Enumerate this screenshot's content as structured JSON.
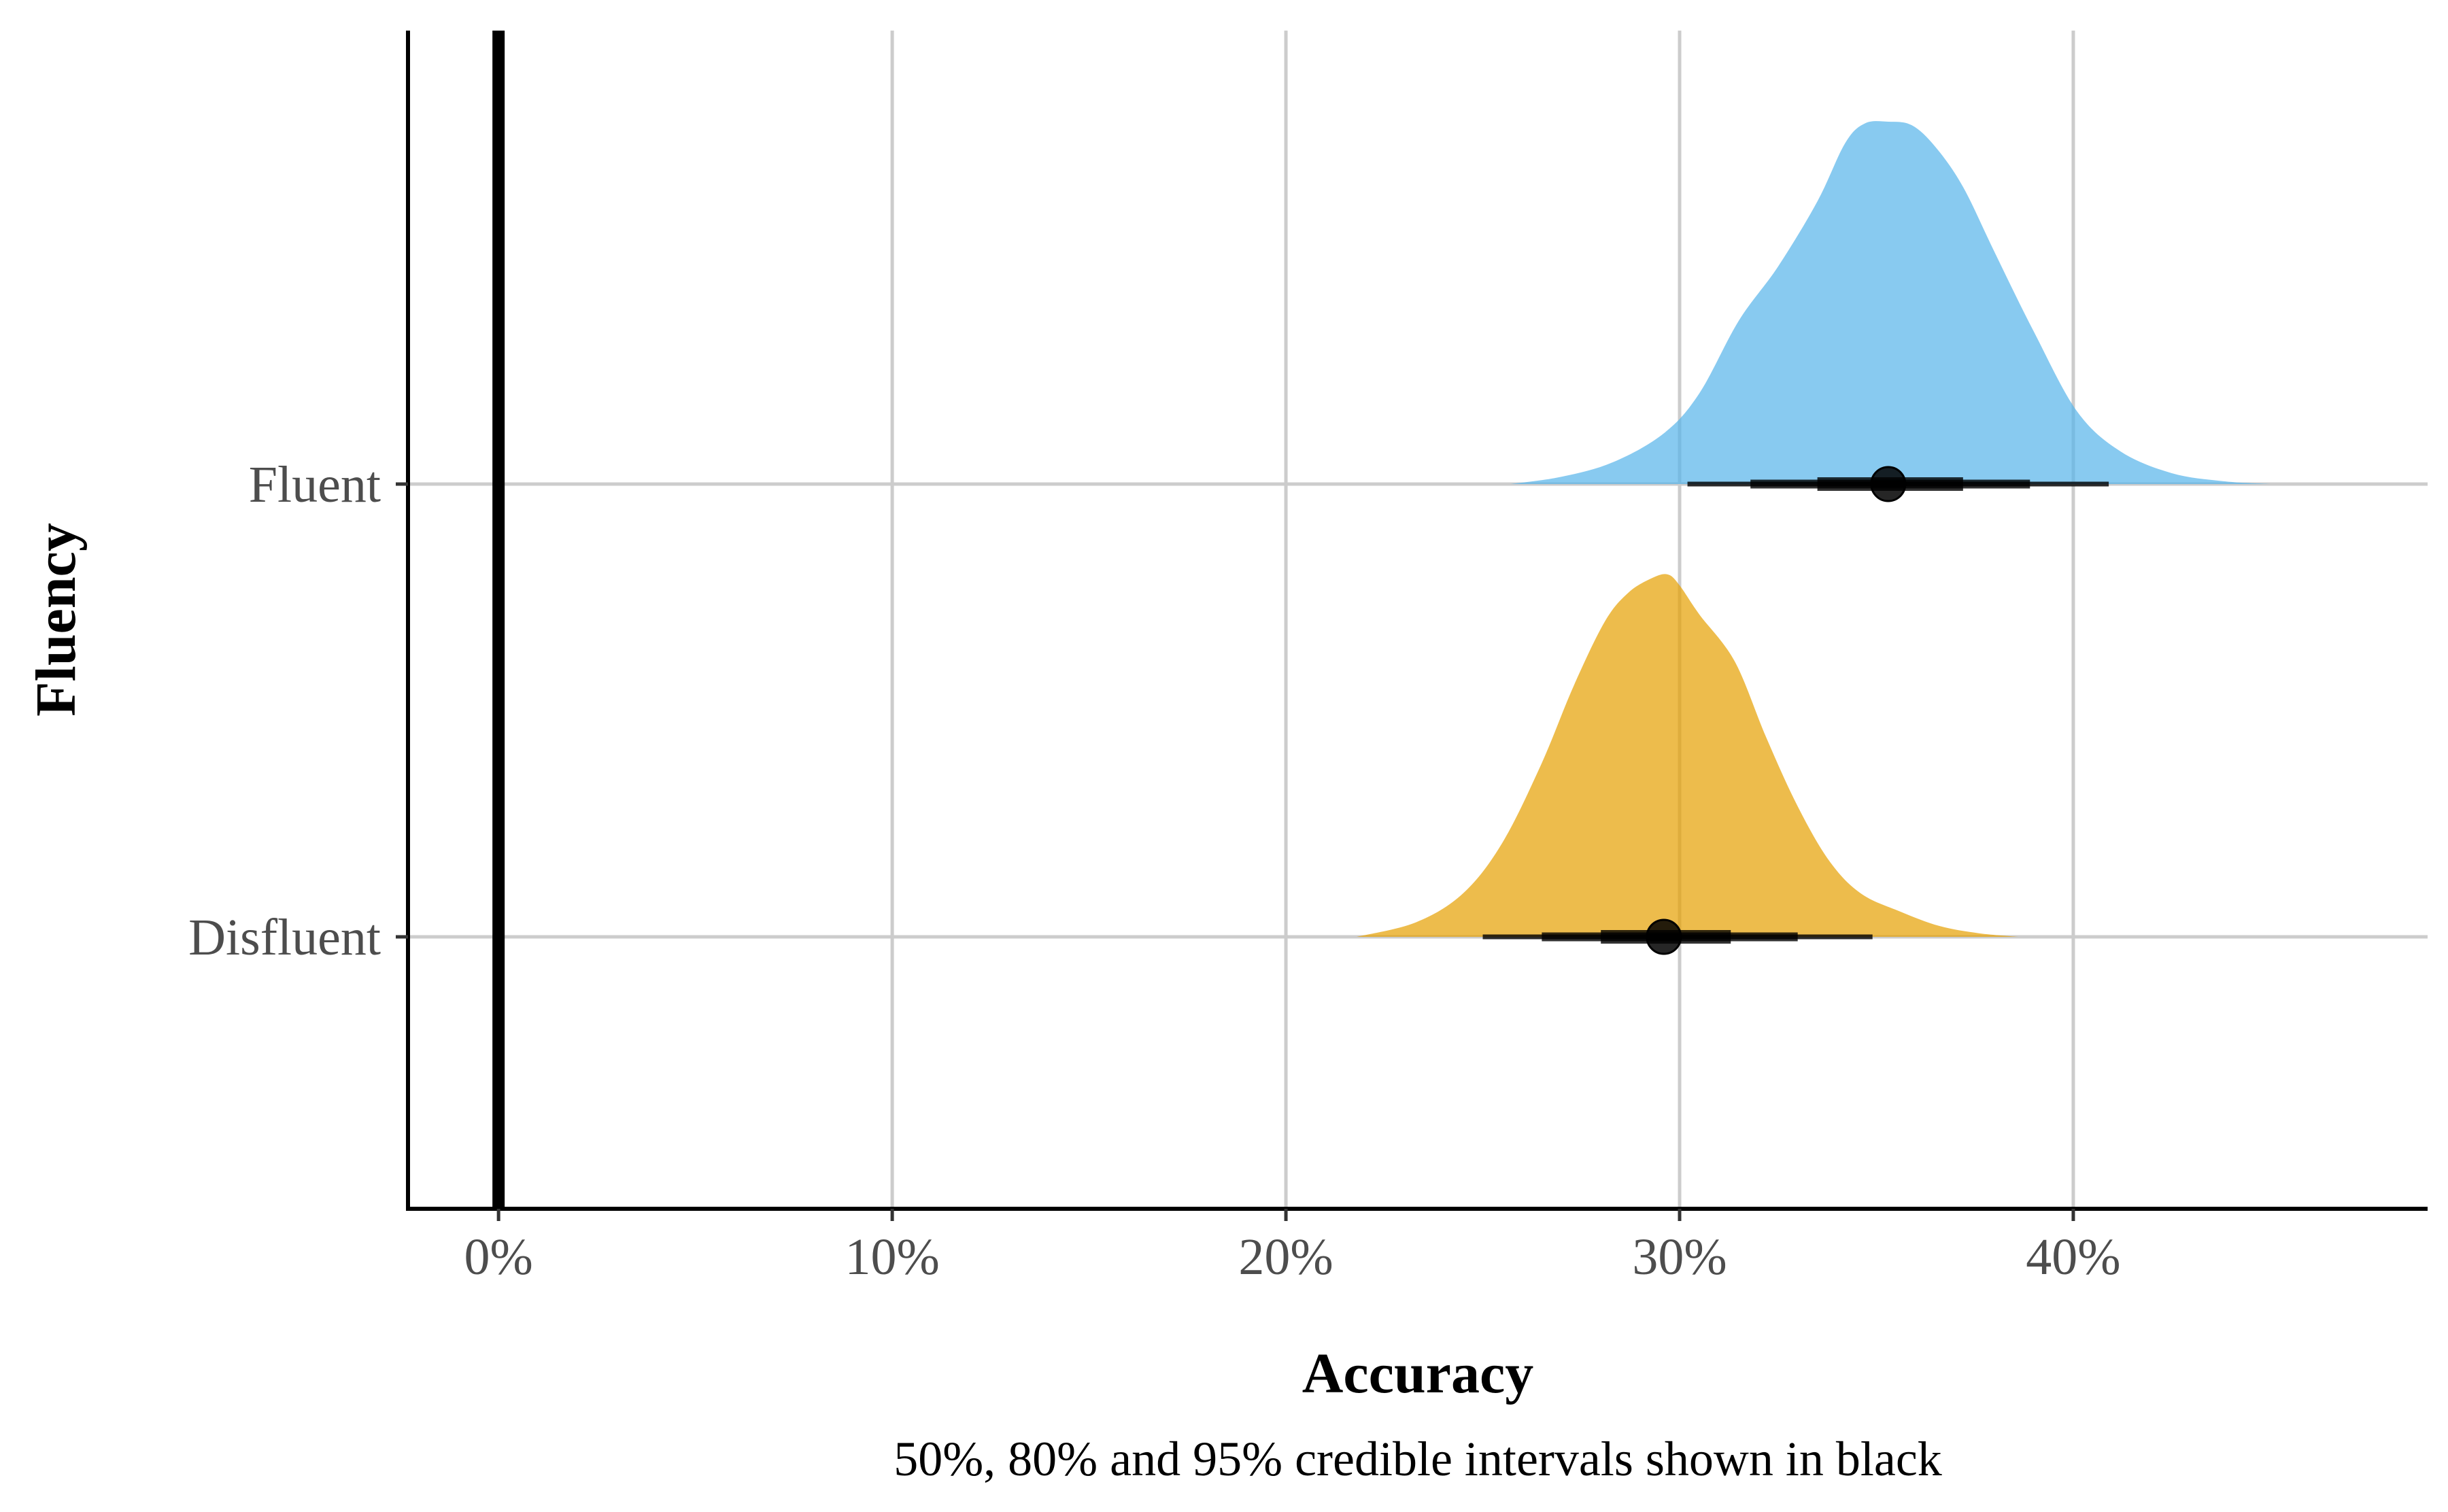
{
  "chart_data": {
    "type": "area",
    "subtype": "half-eye density with point and interval",
    "xlabel": "Accuracy",
    "ylabel": "Fluency",
    "caption": "50%, 80% and 95% credible intervals shown in black",
    "xlim": [
      -0.023,
      0.49
    ],
    "x_ticks": [
      {
        "value": 0.0,
        "label": "0%"
      },
      {
        "value": 0.1,
        "label": "10%"
      },
      {
        "value": 0.2,
        "label": "20%"
      },
      {
        "value": 0.3,
        "label": "30%"
      },
      {
        "value": 0.4,
        "label": "40%"
      }
    ],
    "categories": [
      "Disfluent",
      "Fluent"
    ],
    "reference_line_x": 0.0,
    "grid": true,
    "legend": "none",
    "series": [
      {
        "category": "Fluent",
        "color": "#56B4E9",
        "density": {
          "x": [
            0.257,
            0.27,
            0.283,
            0.296,
            0.305,
            0.315,
            0.325,
            0.335,
            0.342,
            0.347,
            0.353,
            0.359,
            0.365,
            0.372,
            0.38,
            0.39,
            0.401,
            0.412,
            0.425,
            0.438,
            0.45
          ],
          "y": [
            0.0,
            0.02,
            0.06,
            0.14,
            0.25,
            0.45,
            0.6,
            0.78,
            0.94,
            0.995,
            1.0,
            0.99,
            0.93,
            0.82,
            0.64,
            0.42,
            0.2,
            0.09,
            0.03,
            0.008,
            0.0
          ]
        },
        "point": 0.353,
        "intervals": {
          "50": [
            0.335,
            0.372
          ],
          "80": [
            0.318,
            0.389
          ],
          "95": [
            0.302,
            0.409
          ]
        }
      },
      {
        "category": "Disfluent",
        "color": "#E69F00",
        "density": {
          "x": [
            0.218,
            0.233,
            0.245,
            0.255,
            0.265,
            0.273,
            0.281,
            0.287,
            0.293,
            0.297,
            0.3,
            0.305,
            0.314,
            0.322,
            0.33,
            0.338,
            0.346,
            0.356,
            0.366,
            0.376,
            0.386
          ],
          "y": [
            0.0,
            0.04,
            0.12,
            0.26,
            0.48,
            0.69,
            0.87,
            0.95,
            0.99,
            1.0,
            0.97,
            0.89,
            0.76,
            0.55,
            0.36,
            0.21,
            0.12,
            0.07,
            0.03,
            0.01,
            0.0
          ]
        },
        "point": 0.296,
        "intervals": {
          "50": [
            0.28,
            0.313
          ],
          "80": [
            0.265,
            0.33
          ],
          "95": [
            0.25,
            0.349
          ]
        }
      }
    ]
  }
}
